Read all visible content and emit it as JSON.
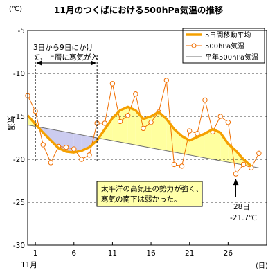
{
  "chart_data": {
    "type": "line",
    "title": "11月のつくばにおける500hPa気温の推移",
    "ylabel": "気温",
    "y_unit": "(℃)",
    "x_unit": "(日)",
    "month_label": "11月",
    "x_ticks": [
      1,
      6,
      11,
      16,
      21,
      26
    ],
    "y_ticks": [
      -5,
      -10,
      -15,
      -20,
      -25,
      -30
    ],
    "xlim": [
      0,
      31
    ],
    "ylim": [
      -30,
      -5
    ],
    "grid": true,
    "legend_position": "top-right",
    "series": [
      {
        "name": "5日間移動平均",
        "color": "#f5a000",
        "x": [
          0,
          1,
          2,
          3,
          4,
          5,
          6,
          7,
          8,
          9,
          10,
          11,
          12,
          13,
          14,
          15,
          16,
          17,
          18,
          19,
          20,
          21,
          22,
          23,
          24,
          25,
          26,
          27,
          28,
          29
        ],
        "values": [
          -14.9,
          -15.9,
          -16.9,
          -17.8,
          -18.7,
          -19.1,
          -19.2,
          -19.0,
          -18.6,
          -17.8,
          -16.5,
          -15.2,
          -14.3,
          -13.9,
          -14.3,
          -15.3,
          -15.0,
          -14.5,
          -15.3,
          -16.5,
          -17.3,
          -17.8,
          -17.4,
          -17.0,
          -16.5,
          -16.9,
          -18.2,
          -19.0,
          -20.0,
          -20.8
        ]
      },
      {
        "name": "500hPa気温",
        "color": "#f06e00",
        "x": [
          0,
          1,
          2,
          3,
          4,
          5,
          6,
          7,
          8,
          9,
          10,
          11,
          12,
          13,
          14,
          15,
          16,
          17,
          18,
          19,
          20,
          21,
          22,
          23,
          24,
          25,
          26,
          27,
          28,
          29,
          30
        ],
        "values": [
          -12.6,
          -14.4,
          -18.3,
          -20.4,
          -18.5,
          -18.6,
          -18.8,
          -20.0,
          -19.5,
          -15.8,
          -15.8,
          -11.2,
          -15.6,
          -14.9,
          -12.4,
          -16.4,
          -15.7,
          -14.5,
          -10.8,
          -20.6,
          -20.8,
          -16.7,
          -17.0,
          -13.1,
          -16.8,
          -15.0,
          -15.7,
          -21.7,
          -20.6,
          -21.0,
          -19.3
        ]
      },
      {
        "name": "平年500hPa気温",
        "color": "#6f6f6f",
        "x": [
          0,
          30
        ],
        "values": [
          -16.0,
          -21.0
        ]
      }
    ],
    "annotations": {
      "cold_period_text_line1": "3日から9日にかけ",
      "cold_period_text_line2": "て、上層に寒気が入",
      "cold_period_range": [
        1,
        9
      ],
      "high_pressure_line1": "太平洋の高気圧の勢力が強く、",
      "high_pressure_line2": "寒気の南下は弱かった。",
      "day28_line1": "28日",
      "day28_line2": "-21.7℃",
      "day28_point": [
        27,
        -21.7
      ]
    },
    "colors": {
      "cold_fill": "#ccccf0",
      "warm_fill": "#ffff9f",
      "note_box": "#ffffaa"
    }
  }
}
